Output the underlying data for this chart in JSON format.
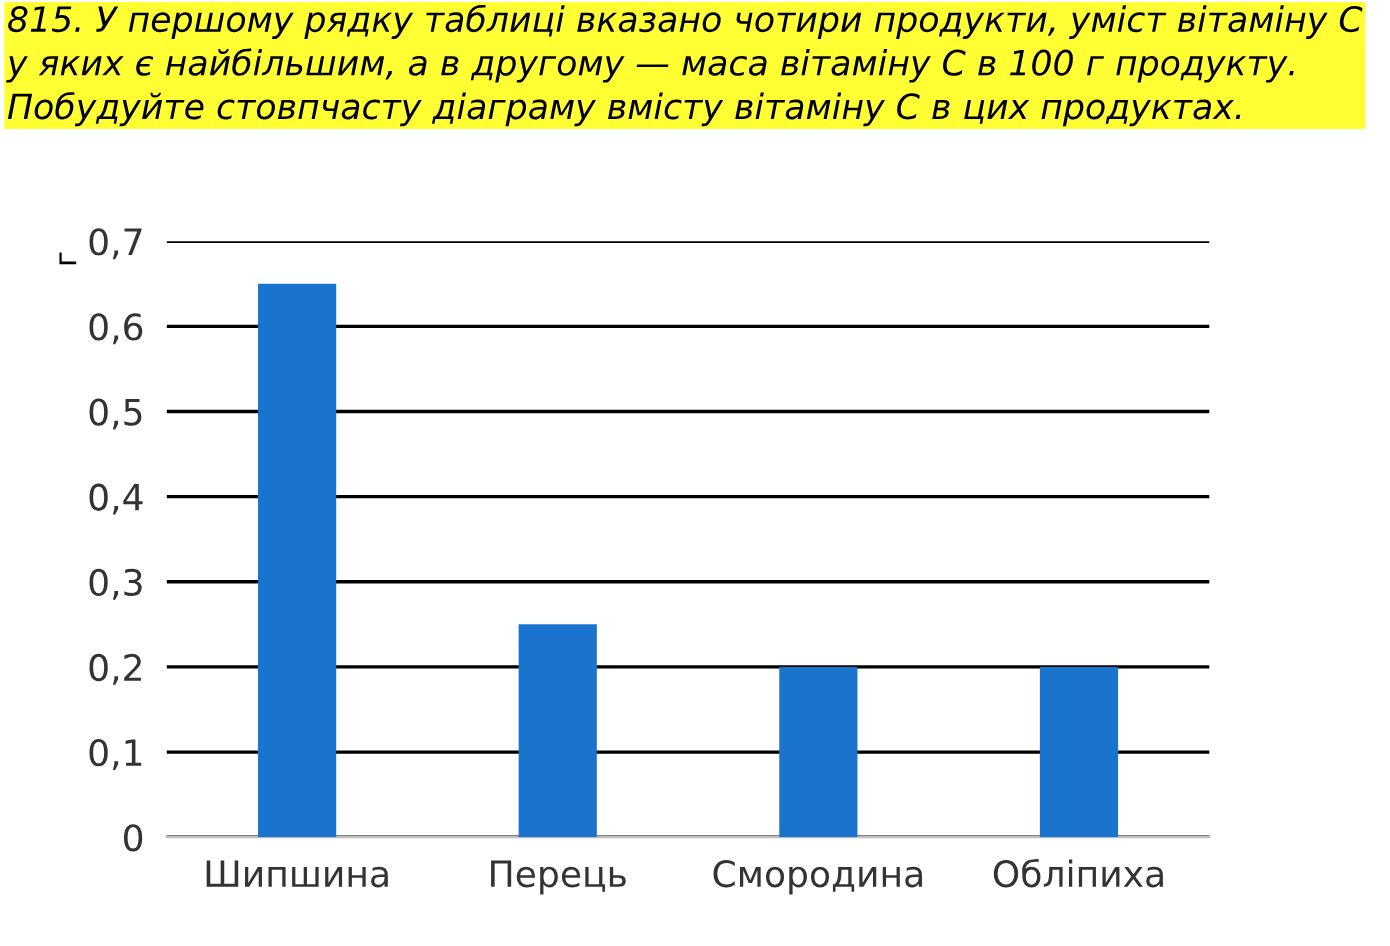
{
  "chart_data": {
    "type": "bar",
    "title": "815. У першому рядку таблиці вказано чотири продукти, уміст вітаміну С у яких є найбільшим, а в другому — маса вітаміну С в 100 г продукту. Побудуйте стовпчасту діаграму вмісту вітаміну С в цих продуктах.",
    "ylabel": "г",
    "categories": [
      "Шипшина",
      "Перець",
      "Смородина",
      "Обліпиха"
    ],
    "values": [
      0.65,
      0.25,
      0.2,
      0.2
    ],
    "color": "#1a73cc",
    "ylim": [
      0,
      0.7
    ],
    "yticks": [
      0,
      {
        "value": 0.1,
        "label": "0,1"
      },
      {
        "value": 0.2,
        "label": "0,2"
      },
      {
        "value": 0.3,
        "label": "0,3"
      },
      {
        "value": 0.4,
        "label": "0,4"
      },
      {
        "value": 0.5,
        "label": "0,5"
      },
      {
        "value": 0.6,
        "label": "0,6"
      },
      {
        "value": 0.7,
        "label": "0,7"
      }
    ],
    "grid": "y"
  }
}
